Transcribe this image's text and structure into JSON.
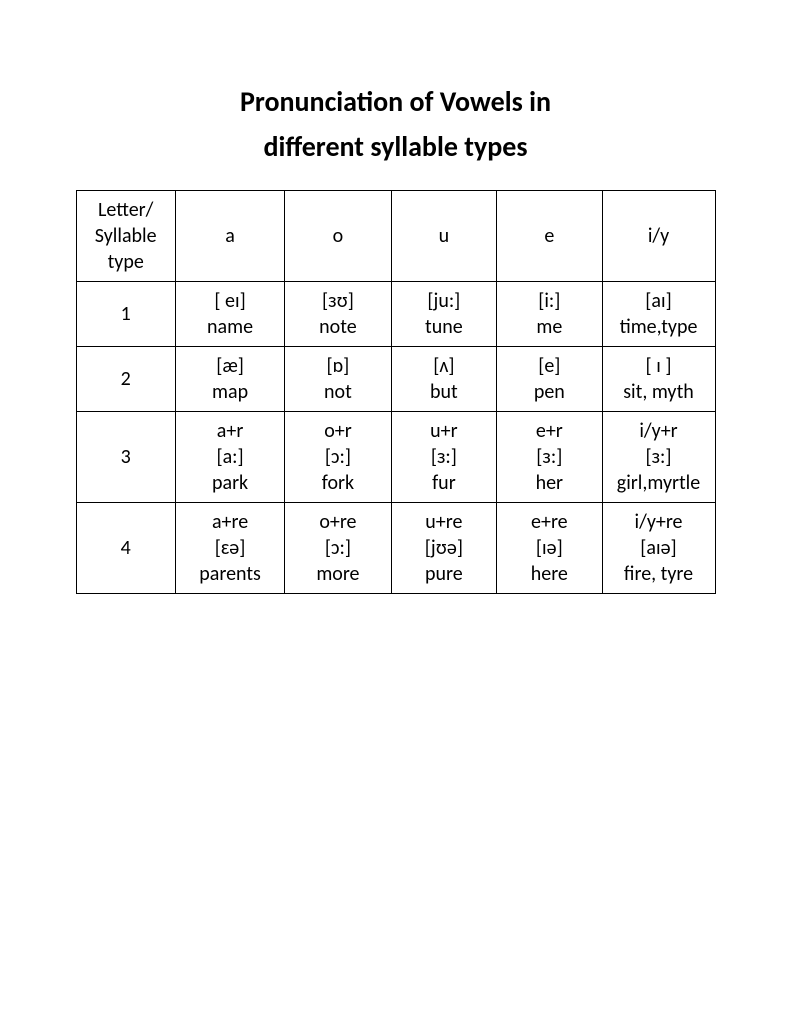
{
  "title_line1": "Pronunciation of Vowels in",
  "title_line2": "different syllable types",
  "table": {
    "columns": [
      "Letter/\nSyllable\ntype",
      "a",
      "o",
      "u",
      "e",
      "i/y"
    ],
    "rows": [
      [
        "1",
        "[ eɪ]\nname",
        "[ɜʊ]\nnote",
        "[ju:]\ntune",
        "[i:]\nme",
        "[aɪ]\ntime,type"
      ],
      [
        "2",
        "[æ]\nmap",
        "[ɒ]\nnot",
        "[ʌ]\nbut",
        "[e]\npen",
        "[ ɪ ]\nsit, myth"
      ],
      [
        "3",
        "a+r\n[a:]\npark",
        "o+r\n[ɔ:]\nfork",
        "u+r\n[ɜ:]\nfur",
        "e+r\n[ɜ:]\nher",
        "i/y+r\n[ɜ:]\ngirl,myrtle"
      ],
      [
        "4",
        "a+re\n[ɛə]\nparents",
        "o+re\n[ɔ:]\nmore",
        "u+re\n[jʊə]\npure",
        "e+re\n[ɪə]\nhere",
        "i/y+re\n[aɪə]\nfire, tyre"
      ]
    ]
  },
  "colors": {
    "background": "#ffffff",
    "text": "#000000",
    "border": "#000000"
  }
}
